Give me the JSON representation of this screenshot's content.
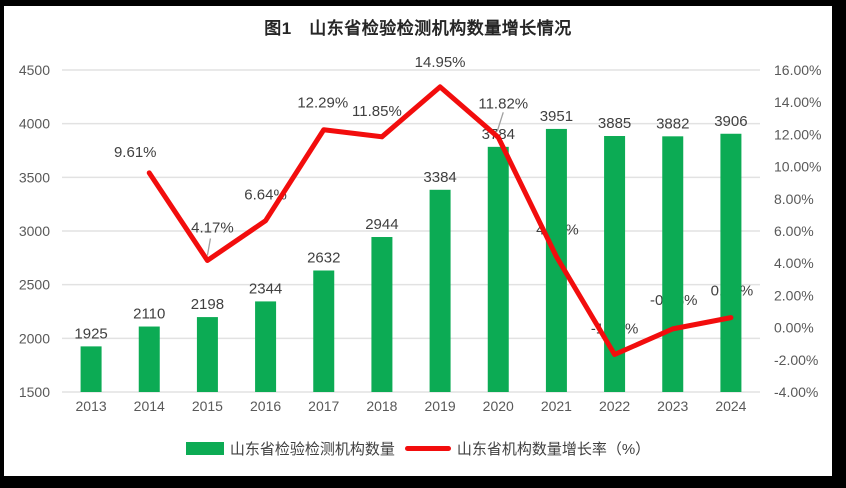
{
  "title": "图1　山东省检验检测机构数量增长情况",
  "colors": {
    "bar": "#0cab54",
    "line": "#f20d0d",
    "grid": "#e2e2e2",
    "axis_text": "#595959",
    "data_label_text": "#404040",
    "title_text": "#262626",
    "leader_line": "#a0a0a0",
    "frame": "#000000",
    "background": "#ffffff"
  },
  "legend": [
    {
      "type": "bar",
      "label": "山东省检验检测机构数量"
    },
    {
      "type": "line",
      "label": "山东省机构数量增长率（%）"
    }
  ],
  "chart_data": {
    "type": "bar",
    "title": "图1　山东省检验检测机构数量增长情况",
    "categories": [
      "2013",
      "2014",
      "2015",
      "2016",
      "2017",
      "2018",
      "2019",
      "2020",
      "2021",
      "2022",
      "2023",
      "2024"
    ],
    "series": [
      {
        "name": "山东省检验检测机构数量",
        "type": "bar",
        "axis": "left",
        "values": [
          1925,
          2110,
          2198,
          2344,
          2632,
          2944,
          3384,
          3784,
          3951,
          3885,
          3882,
          3906
        ],
        "labels": [
          "1925",
          "2110",
          "2198",
          "2344",
          "2632",
          "2944",
          "3384",
          "3784",
          "3951",
          "3885",
          "3882",
          "3906"
        ]
      },
      {
        "name": "山东省机构数量增长率（%）",
        "type": "line",
        "axis": "right",
        "values": [
          null,
          9.61,
          4.17,
          6.64,
          12.29,
          11.85,
          14.95,
          11.82,
          4.41,
          -1.67,
          -0.08,
          0.62
        ],
        "labels": [
          null,
          "9.61%",
          "4.17%",
          "6.64%",
          "12.29%",
          "11.85%",
          "14.95%",
          "11.82%",
          "4.41%",
          "-1.67%",
          "-0.08%",
          "0.62%"
        ]
      }
    ],
    "left_axis": {
      "min": 1500,
      "max": 4500,
      "step": 500,
      "ticks": [
        "4500",
        "4000",
        "3500",
        "3000",
        "2500",
        "2000",
        "1500"
      ],
      "tick_values": [
        4500,
        4000,
        3500,
        3000,
        2500,
        2000,
        1500
      ]
    },
    "right_axis": {
      "min": -4,
      "max": 16,
      "step": 2,
      "ticks": [
        "16.00%",
        "14.00%",
        "12.00%",
        "10.00%",
        "8.00%",
        "6.00%",
        "4.00%",
        "2.00%",
        "0.00%",
        "-2.00%",
        "-4.00%"
      ],
      "tick_values": [
        16,
        14,
        12,
        10,
        8,
        6,
        4,
        2,
        0,
        -2,
        -4
      ]
    },
    "grid": true,
    "legend_position": "bottom",
    "xlabel": "",
    "ylabel": ""
  }
}
